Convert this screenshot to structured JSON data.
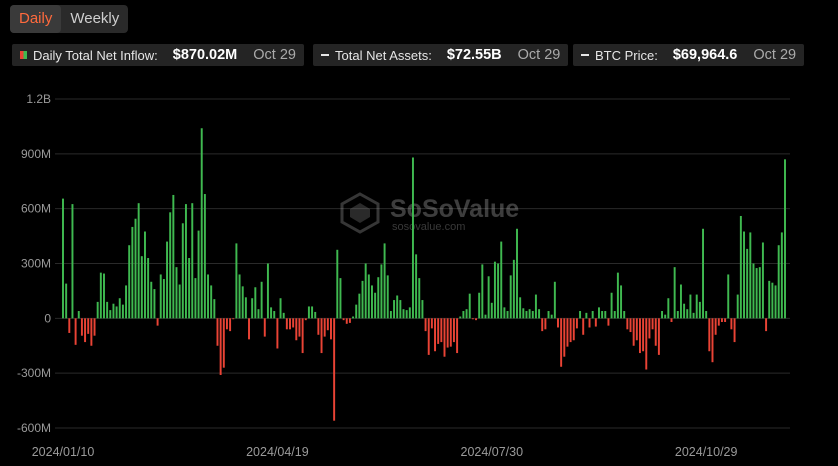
{
  "tabs": {
    "daily": "Daily",
    "weekly": "Weekly",
    "active": "daily"
  },
  "legend": [
    {
      "label": "Daily Total Net Inflow:",
      "value": "$870.02M",
      "date": "Oct 29"
    },
    {
      "label": "Total Net Assets:",
      "value": "$72.55B",
      "date": "Oct 29"
    },
    {
      "label": "BTC Price:",
      "value": "$69,964.6",
      "date": "Oct 29"
    }
  ],
  "watermark": {
    "brand": "SoSoValue",
    "url": "sosovalue.com"
  },
  "colors": {
    "positive": "#3fb950",
    "negative": "#ea4335",
    "grid": "#2a2a2a",
    "axis_text": "#9a9a9a"
  },
  "chart_data": {
    "type": "bar",
    "title": "",
    "xlabel": "",
    "ylabel": "",
    "ylim": [
      -600,
      1200
    ],
    "unit": "M",
    "yticks": [
      {
        "value": 1200,
        "label": "1.2B"
      },
      {
        "value": 900,
        "label": "900M"
      },
      {
        "value": 600,
        "label": "600M"
      },
      {
        "value": 300,
        "label": "300M"
      },
      {
        "value": 0,
        "label": "0"
      },
      {
        "value": -300,
        "label": "-300M"
      },
      {
        "value": -600,
        "label": "-600M"
      }
    ],
    "xticks": [
      {
        "index": 0,
        "label": "2024/01/10"
      },
      {
        "index": 68,
        "label": "2024/04/19"
      },
      {
        "index": 136,
        "label": "2024/07/30"
      },
      {
        "index": 204,
        "label": "2024/10/29"
      }
    ],
    "grid": true,
    "series": [
      {
        "values": [
          655,
          190,
          -80,
          625,
          -145,
          40,
          -95,
          -130,
          -85,
          -150,
          -95,
          90,
          250,
          245,
          90,
          45,
          80,
          65,
          110,
          75,
          180,
          400,
          500,
          545,
          630,
          340,
          475,
          330,
          200,
          160,
          -40,
          240,
          215,
          420,
          580,
          675,
          280,
          185,
          520,
          625,
          330,
          630,
          220,
          480,
          1040,
          680,
          240,
          180,
          105,
          -150,
          -310,
          -270,
          -60,
          -70,
          -5,
          410,
          240,
          175,
          115,
          -115,
          110,
          170,
          50,
          200,
          -100,
          300,
          60,
          40,
          -165,
          110,
          30,
          -60,
          -60,
          -50,
          -120,
          -100,
          -190,
          -10,
          65,
          65,
          35,
          -90,
          -190,
          -100,
          -65,
          -115,
          -560,
          375,
          220,
          -10,
          -30,
          -25,
          10,
          75,
          135,
          205,
          300,
          240,
          180,
          140,
          225,
          295,
          410,
          235,
          40,
          100,
          125,
          100,
          50,
          45,
          60,
          880,
          350,
          220,
          100,
          -70,
          -200,
          -55,
          -180,
          -140,
          -130,
          -210,
          -160,
          -155,
          -130,
          -190,
          10,
          40,
          50,
          135,
          -5,
          -10,
          140,
          295,
          20,
          230,
          85,
          310,
          300,
          420,
          60,
          40,
          235,
          320,
          490,
          115,
          55,
          40,
          50,
          40,
          130,
          50,
          -70,
          -60,
          40,
          20,
          200,
          -50,
          -265,
          -210,
          -155,
          -130,
          -120,
          -55,
          40,
          -90,
          30,
          -50,
          40,
          -45,
          60,
          40,
          40,
          -40,
          140,
          40,
          250,
          180,
          40,
          -60,
          -75,
          -150,
          -120,
          -190,
          -180,
          -280,
          -110,
          -60,
          -150,
          -200,
          40,
          20,
          110,
          -20,
          280,
          40,
          185,
          80,
          50,
          130,
          30,
          130,
          90,
          490,
          40,
          -180,
          -240,
          -90,
          -40,
          -20,
          -20,
          240,
          -60,
          -130,
          130,
          560,
          475,
          380,
          470,
          300,
          275,
          280,
          415,
          -70,
          205,
          195,
          180,
          400,
          470,
          870
        ]
      }
    ]
  }
}
